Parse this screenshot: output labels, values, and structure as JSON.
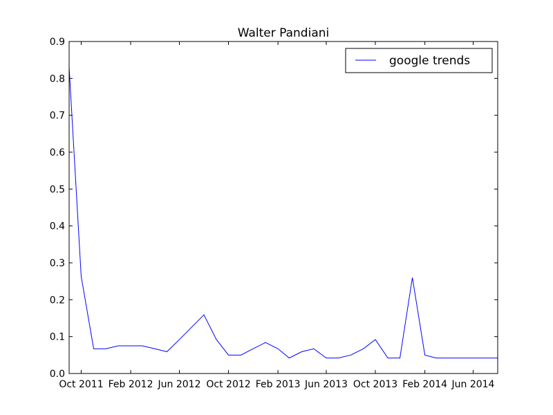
{
  "chart_data": {
    "type": "line",
    "title": "Walter Pandiani",
    "xlabel": "",
    "ylabel": "",
    "x_tick_labels": [
      "Oct 2011",
      "Feb 2012",
      "Jun 2012",
      "Oct 2012",
      "Feb 2013",
      "Jun 2013",
      "Oct 2013",
      "Feb 2014",
      "Jun 2014"
    ],
    "x_tick_dates": [
      "2011-10-01",
      "2012-02-01",
      "2012-06-01",
      "2012-10-01",
      "2013-02-01",
      "2013-06-01",
      "2013-10-01",
      "2014-02-01",
      "2014-06-01"
    ],
    "y_tick_labels": [
      "0.0",
      "0.1",
      "0.2",
      "0.3",
      "0.4",
      "0.5",
      "0.6",
      "0.7",
      "0.8",
      "0.9"
    ],
    "xlim": [
      "2011-09-01",
      "2014-08-01"
    ],
    "ylim": [
      0,
      0.9
    ],
    "grid": false,
    "legend_position": "top-right",
    "series": [
      {
        "name": "google trends",
        "color": "#0000ff",
        "x": [
          "2011-09-01",
          "2011-10-01",
          "2011-11-01",
          "2011-12-01",
          "2012-01-01",
          "2012-02-01",
          "2012-03-01",
          "2012-04-01",
          "2012-05-01",
          "2012-06-01",
          "2012-07-01",
          "2012-08-01",
          "2012-09-01",
          "2012-10-01",
          "2012-11-01",
          "2012-12-01",
          "2013-01-01",
          "2013-02-01",
          "2013-03-01",
          "2013-04-01",
          "2013-05-01",
          "2013-06-01",
          "2013-07-01",
          "2013-08-01",
          "2013-09-01",
          "2013-10-01",
          "2013-11-01",
          "2013-12-01",
          "2014-01-01",
          "2014-02-01",
          "2014-03-01",
          "2014-04-01",
          "2014-05-01",
          "2014-06-01",
          "2014-07-01",
          "2014-08-01"
        ],
        "values": [
          0.83,
          0.263,
          0.067,
          0.067,
          0.075,
          0.075,
          0.075,
          0.067,
          0.059,
          0.092,
          0.125,
          0.159,
          0.092,
          0.05,
          0.05,
          0.067,
          0.084,
          0.067,
          0.042,
          0.059,
          0.067,
          0.042,
          0.042,
          0.05,
          0.067,
          0.092,
          0.042,
          0.042,
          0.26,
          0.05,
          0.042,
          0.042,
          0.042,
          0.042,
          0.042,
          0.042
        ]
      }
    ]
  }
}
